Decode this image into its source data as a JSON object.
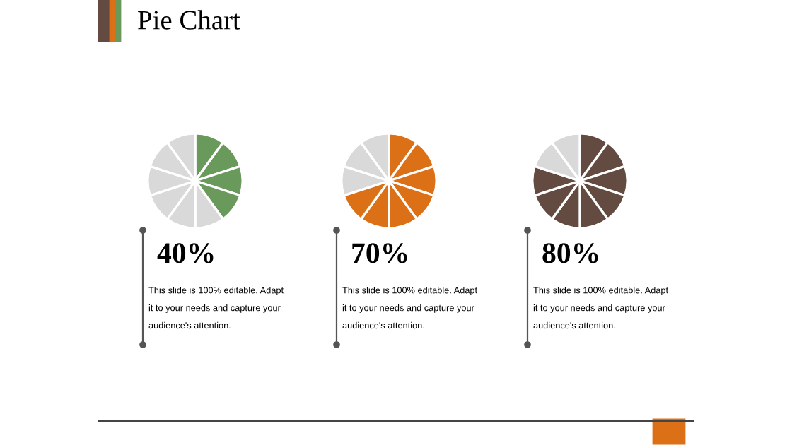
{
  "chart_data": [
    {
      "type": "other",
      "title": "Pie Chart"
    },
    {
      "type": "pie",
      "title": "40%",
      "categories": [
        null,
        null,
        null,
        null,
        null,
        null,
        null,
        null,
        null,
        null
      ],
      "values": [
        10,
        10,
        10,
        10,
        10,
        10,
        10,
        10,
        10,
        10
      ],
      "colors": [
        "#6a9a5b",
        "#6a9a5b",
        "#6a9a5b",
        "#6a9a5b",
        "#d9d9d9",
        "#d9d9d9",
        "#d9d9d9",
        "#d9d9d9",
        "#d9d9d9",
        "#d9d9d9"
      ],
      "annotations": [
        "This slide is 100% editable. Adapt it to your needs and capture your audience's attention."
      ]
    },
    {
      "type": "pie",
      "title": "70%",
      "categories": [
        null,
        null,
        null,
        null,
        null,
        null,
        null,
        null,
        null,
        null
      ],
      "values": [
        10,
        10,
        10,
        10,
        10,
        10,
        10,
        10,
        10,
        10
      ],
      "colors": [
        "#dc7017",
        "#dc7017",
        "#dc7017",
        "#dc7017",
        "#dc7017",
        "#dc7017",
        "#dc7017",
        "#d9d9d9",
        "#d9d9d9",
        "#d9d9d9"
      ],
      "annotations": [
        "This slide is 100% editable. Adapt it to your needs and capture your audience's attention."
      ]
    },
    {
      "type": "pie",
      "title": "80%",
      "categories": [
        null,
        null,
        null,
        null,
        null,
        null,
        null,
        null,
        null,
        null
      ],
      "values": [
        10,
        10,
        10,
        10,
        10,
        10,
        10,
        10,
        10,
        10
      ],
      "colors": [
        "#634b42",
        "#634b42",
        "#634b42",
        "#634b42",
        "#634b42",
        "#634b42",
        "#634b42",
        "#634b42",
        "#d9d9d9",
        "#d9d9d9"
      ],
      "annotations": [
        "This slide is 100% editable. Adapt it to your needs and capture your audience's attention."
      ]
    }
  ]
}
